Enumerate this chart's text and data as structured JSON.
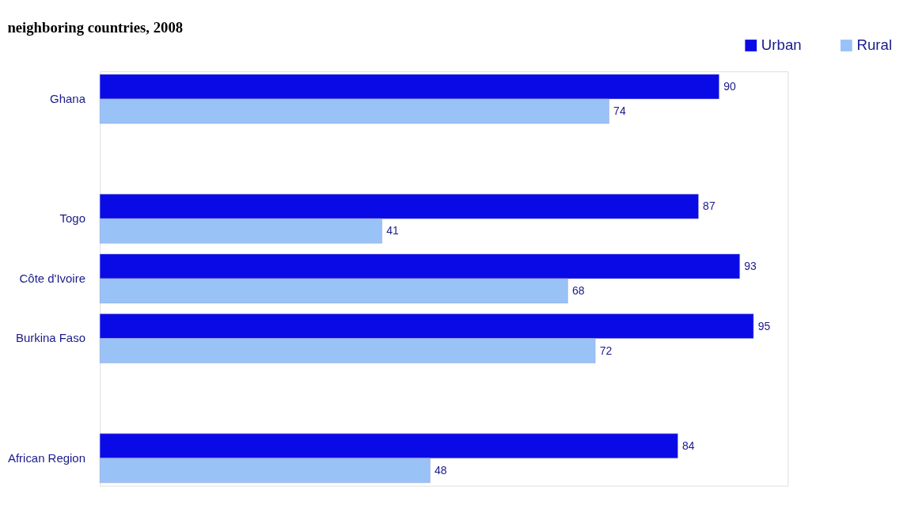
{
  "chart_data": {
    "type": "bar",
    "orientation": "horizontal",
    "title": "neighboring countries, 2008",
    "categories": [
      "Ghana",
      null,
      "Togo",
      "Côte d'Ivoire",
      "Burkina Faso",
      null,
      "African Region"
    ],
    "series": [
      {
        "name": "Urban",
        "color": "#0a0ae6",
        "values": [
          90,
          null,
          87,
          93,
          95,
          null,
          84
        ]
      },
      {
        "name": "Rural",
        "color": "#99c2f7",
        "values": [
          74,
          null,
          41,
          68,
          72,
          null,
          48
        ]
      }
    ],
    "data_labels": true,
    "legend": "top right",
    "grid": false,
    "tick_labels": "y"
  }
}
